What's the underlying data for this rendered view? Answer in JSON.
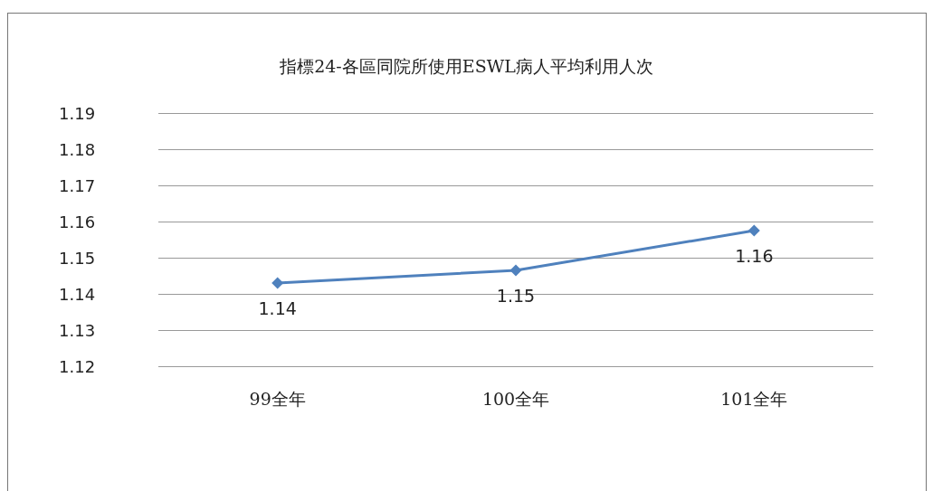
{
  "chart_data": {
    "type": "line",
    "title": "指標24-各區同院所使用ESWL病人平均利用人次",
    "categories": [
      "99全年",
      "100全年",
      "101全年"
    ],
    "series": [
      {
        "color": "#4f81bd",
        "values": [
          1.143,
          1.1465,
          1.1575
        ],
        "value_labels": [
          "1.14",
          "1.15",
          "1.16"
        ]
      }
    ],
    "ylim": [
      1.12,
      1.19
    ],
    "yticks": [
      1.12,
      1.13,
      1.14,
      1.15,
      1.16,
      1.17,
      1.18,
      1.19
    ],
    "grid": "y",
    "marker": "diamond",
    "line_style": "solid"
  }
}
